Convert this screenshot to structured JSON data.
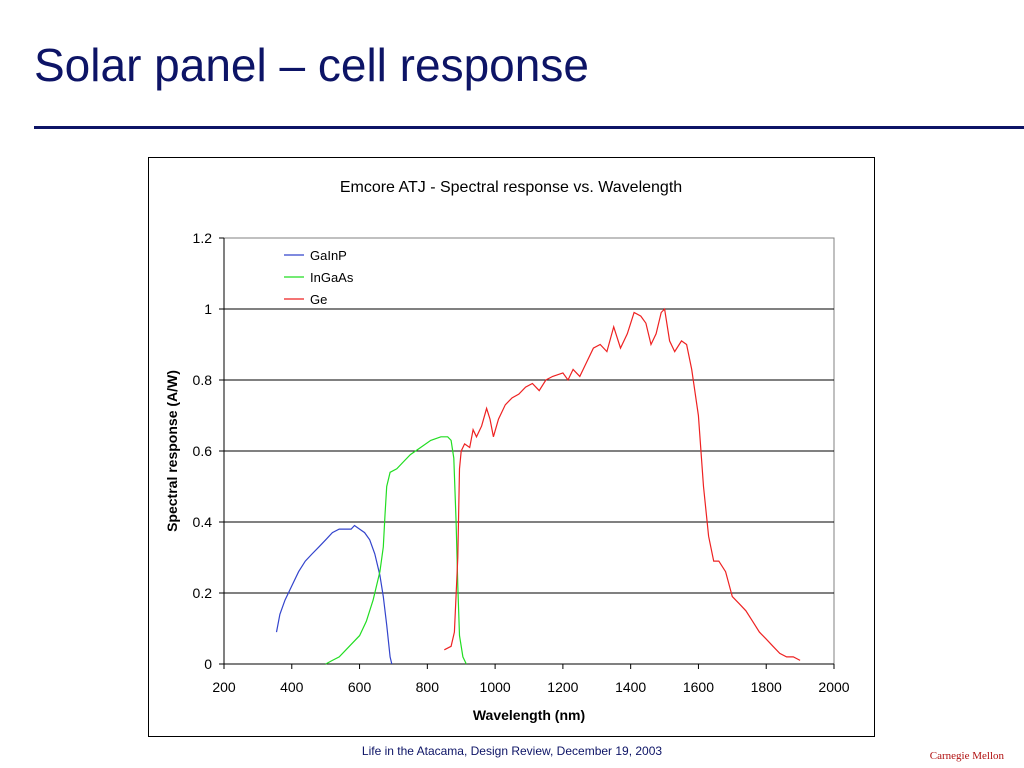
{
  "slide": {
    "title": "Solar panel – cell response",
    "footer": "Life in the Atacama, Design Review, December 19, 2003",
    "brand": "Carnegie Mellon"
  },
  "colors": {
    "title": "#0d1466",
    "brand": "#b01010",
    "GaInP": "#3344cc",
    "InGaAs": "#22dd22",
    "Ge": "#ee2222"
  },
  "chart_data": {
    "type": "line",
    "title": "Emcore ATJ - Spectral response vs. Wavelength",
    "xlabel": "Wavelength (nm)",
    "ylabel": "Spectral response (A/W)",
    "xlim": [
      200,
      2000
    ],
    "ylim": [
      0,
      1.2
    ],
    "xticks": [
      "200",
      "400",
      "600",
      "800",
      "1000",
      "1200",
      "1400",
      "1600",
      "1800",
      "2000"
    ],
    "yticks": [
      "0",
      "0.2",
      "0.4",
      "0.6",
      "0.8",
      "1",
      "1.2"
    ],
    "grid": "horizontal",
    "legend_position": "top-left",
    "series": [
      {
        "name": "GaInP",
        "points": [
          [
            355,
            0.09
          ],
          [
            365,
            0.14
          ],
          [
            380,
            0.18
          ],
          [
            400,
            0.22
          ],
          [
            420,
            0.26
          ],
          [
            440,
            0.29
          ],
          [
            460,
            0.31
          ],
          [
            480,
            0.33
          ],
          [
            500,
            0.35
          ],
          [
            520,
            0.37
          ],
          [
            540,
            0.38
          ],
          [
            560,
            0.38
          ],
          [
            575,
            0.38
          ],
          [
            585,
            0.39
          ],
          [
            600,
            0.38
          ],
          [
            615,
            0.37
          ],
          [
            630,
            0.35
          ],
          [
            645,
            0.31
          ],
          [
            660,
            0.25
          ],
          [
            670,
            0.19
          ],
          [
            680,
            0.11
          ],
          [
            690,
            0.02
          ],
          [
            695,
            0.0
          ]
        ]
      },
      {
        "name": "InGaAs",
        "points": [
          [
            500,
            0.0
          ],
          [
            520,
            0.01
          ],
          [
            540,
            0.02
          ],
          [
            560,
            0.04
          ],
          [
            580,
            0.06
          ],
          [
            600,
            0.08
          ],
          [
            620,
            0.12
          ],
          [
            640,
            0.18
          ],
          [
            660,
            0.26
          ],
          [
            670,
            0.33
          ],
          [
            675,
            0.42
          ],
          [
            680,
            0.5
          ],
          [
            690,
            0.54
          ],
          [
            710,
            0.55
          ],
          [
            730,
            0.57
          ],
          [
            750,
            0.59
          ],
          [
            780,
            0.61
          ],
          [
            810,
            0.63
          ],
          [
            840,
            0.64
          ],
          [
            860,
            0.64
          ],
          [
            870,
            0.63
          ],
          [
            878,
            0.58
          ],
          [
            885,
            0.4
          ],
          [
            890,
            0.22
          ],
          [
            895,
            0.08
          ],
          [
            905,
            0.02
          ],
          [
            915,
            0.0
          ]
        ]
      },
      {
        "name": "Ge",
        "points": [
          [
            850,
            0.04
          ],
          [
            870,
            0.05
          ],
          [
            880,
            0.09
          ],
          [
            890,
            0.3
          ],
          [
            895,
            0.55
          ],
          [
            900,
            0.6
          ],
          [
            910,
            0.62
          ],
          [
            925,
            0.61
          ],
          [
            935,
            0.66
          ],
          [
            945,
            0.64
          ],
          [
            960,
            0.67
          ],
          [
            975,
            0.72
          ],
          [
            985,
            0.69
          ],
          [
            995,
            0.64
          ],
          [
            1010,
            0.69
          ],
          [
            1030,
            0.73
          ],
          [
            1050,
            0.75
          ],
          [
            1070,
            0.76
          ],
          [
            1090,
            0.78
          ],
          [
            1110,
            0.79
          ],
          [
            1130,
            0.77
          ],
          [
            1150,
            0.8
          ],
          [
            1170,
            0.81
          ],
          [
            1200,
            0.82
          ],
          [
            1215,
            0.8
          ],
          [
            1230,
            0.83
          ],
          [
            1250,
            0.81
          ],
          [
            1270,
            0.85
          ],
          [
            1290,
            0.89
          ],
          [
            1310,
            0.9
          ],
          [
            1330,
            0.88
          ],
          [
            1350,
            0.95
          ],
          [
            1370,
            0.89
          ],
          [
            1390,
            0.93
          ],
          [
            1410,
            0.99
          ],
          [
            1430,
            0.98
          ],
          [
            1445,
            0.96
          ],
          [
            1460,
            0.9
          ],
          [
            1475,
            0.93
          ],
          [
            1490,
            0.99
          ],
          [
            1500,
            1.0
          ],
          [
            1515,
            0.91
          ],
          [
            1530,
            0.88
          ],
          [
            1550,
            0.91
          ],
          [
            1565,
            0.9
          ],
          [
            1580,
            0.83
          ],
          [
            1600,
            0.7
          ],
          [
            1615,
            0.5
          ],
          [
            1630,
            0.36
          ],
          [
            1645,
            0.29
          ],
          [
            1660,
            0.29
          ],
          [
            1680,
            0.26
          ],
          [
            1700,
            0.19
          ],
          [
            1720,
            0.17
          ],
          [
            1740,
            0.15
          ],
          [
            1760,
            0.12
          ],
          [
            1780,
            0.09
          ],
          [
            1800,
            0.07
          ],
          [
            1820,
            0.05
          ],
          [
            1840,
            0.03
          ],
          [
            1860,
            0.02
          ],
          [
            1880,
            0.02
          ],
          [
            1900,
            0.01
          ]
        ]
      }
    ]
  }
}
